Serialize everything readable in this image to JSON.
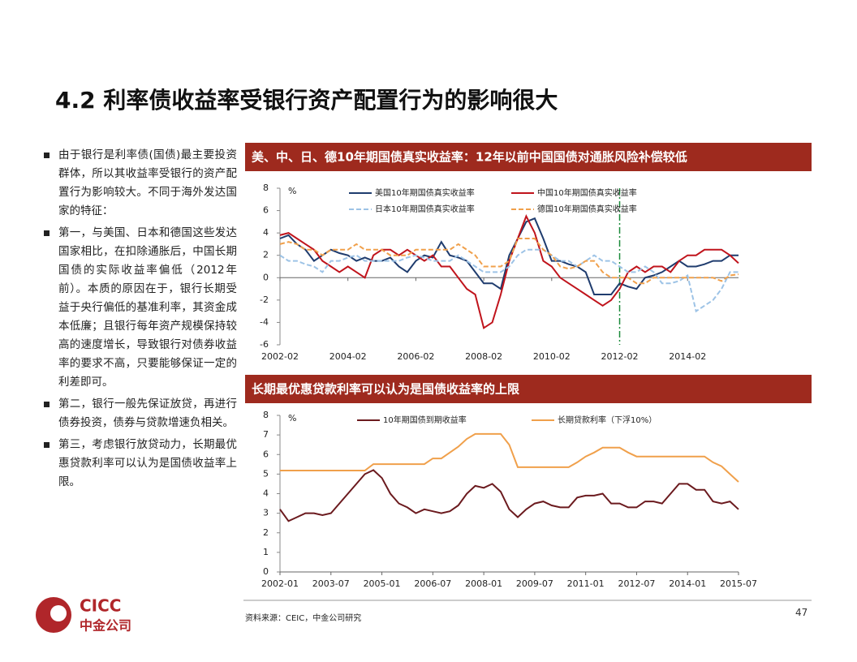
{
  "header": {
    "title": "4.2 利率债收益率受银行资产配置行为的影响很大"
  },
  "bullets": [
    "由于银行是利率债(国债)最主要投资群体，所以其收益率受银行的资产配置行为影响较大。不同于海外发达国家的特征：",
    "第一，与美国、日本和德国这些发达国家相比，在扣除通胀后，中国长期国债的实际收益率偏低（2012年前）。本质的原因在于，银行长期受益于央行偏低的基准利率，其资金成本低廉；且银行每年资产规模保持较高的速度增长，导致银行对债券收益率的要求不高，只要能够保证一定的利差即可。",
    "第二，银行一般先保证放贷，再进行债券投资，债券与贷款增速负相关。",
    "第三，考虑银行放贷动力，长期最优惠贷款利率可以认为是国债收益率上限。"
  ],
  "chart_data": [
    {
      "type": "line",
      "title": "美、中、日、德10年期国债真实收益率：12年以前中国国债对通胀风险补偿较低",
      "y_unit": "%",
      "categories": [
        "2002-02",
        null,
        null,
        null,
        null,
        null,
        null,
        null,
        "2004-02",
        null,
        null,
        null,
        null,
        null,
        null,
        null,
        "2006-02",
        null,
        null,
        null,
        null,
        null,
        null,
        null,
        "2008-02",
        null,
        null,
        null,
        null,
        null,
        null,
        null,
        "2010-02",
        null,
        null,
        null,
        null,
        null,
        null,
        null,
        "2012-02",
        null,
        null,
        null,
        null,
        null,
        null,
        null,
        "2014-02",
        null,
        null,
        null,
        null,
        null,
        null
      ],
      "ylim": [
        -6,
        8
      ],
      "yticks": [
        -6,
        -4,
        -2,
        0,
        2,
        4,
        6,
        8
      ],
      "reference_line": {
        "category_index": 40,
        "color": "#1a8a3a"
      },
      "series": [
        {
          "name": "美国10年期国债真实收益率",
          "color": "#1f3c6e",
          "style": "solid",
          "values": [
            3.5,
            3.8,
            3.0,
            2.5,
            1.5,
            2.0,
            2.5,
            2.2,
            2.0,
            1.5,
            1.8,
            1.5,
            1.5,
            1.8,
            1.0,
            0.5,
            1.5,
            2.0,
            1.8,
            3.2,
            2.0,
            1.8,
            1.5,
            0.5,
            -0.5,
            -0.5,
            -1.0,
            2.0,
            3.5,
            5.0,
            5.3,
            3.5,
            1.5,
            1.5,
            1.2,
            1.0,
            0.5,
            -1.5,
            -1.5,
            -1.5,
            -0.5,
            -0.8,
            -1.0,
            0,
            0.2,
            0.5,
            1.0,
            1.5,
            1.0,
            1.0,
            1.2,
            1.5,
            1.5,
            2.0,
            2.0
          ]
        },
        {
          "name": "中国10年期国债真实收益率",
          "color": "#c0141c",
          "style": "solid",
          "values": [
            3.8,
            4.0,
            3.5,
            3.0,
            2.5,
            1.5,
            1.0,
            0.5,
            1.0,
            0.5,
            0.0,
            2.0,
            2.5,
            2.5,
            2.0,
            2.5,
            2.0,
            1.5,
            2.0,
            1.0,
            1.0,
            0,
            -1.0,
            -1.5,
            -4.5,
            -4.0,
            -1.5,
            1.5,
            3.5,
            5.5,
            4.0,
            1.5,
            1.0,
            0,
            -0.5,
            -1.0,
            -1.5,
            -2.0,
            -2.5,
            -2.0,
            -1.0,
            0.5,
            1.0,
            0.5,
            1.0,
            1.0,
            0.5,
            1.5,
            2.0,
            2.0,
            2.5,
            2.5,
            2.5,
            2.0,
            1.3
          ]
        },
        {
          "name": "日本10年期国债真实收益率",
          "color": "#9dc3e6",
          "style": "dashed",
          "values": [
            2.0,
            1.5,
            1.5,
            1.2,
            1.0,
            0.5,
            1.5,
            1.5,
            1.8,
            2.0,
            1.5,
            1.5,
            1.5,
            1.5,
            1.5,
            1.8,
            2.0,
            1.8,
            1.5,
            1.5,
            1.5,
            2.0,
            1.5,
            1.0,
            0.5,
            0.5,
            0.5,
            1.0,
            2.0,
            2.5,
            2.5,
            2.5,
            2.0,
            1.5,
            1.5,
            1.0,
            1.5,
            2.0,
            1.5,
            1.5,
            1.0,
            0.5,
            0.5,
            1.0,
            0.5,
            -0.5,
            -0.5,
            -0.3,
            0.2,
            -3.0,
            -2.5,
            -2.0,
            -1.0,
            0.5,
            0.5
          ]
        },
        {
          "name": "德国10年期国债真实收益率",
          "color": "#f0a04b",
          "style": "dashed",
          "values": [
            3.0,
            3.2,
            3.0,
            2.5,
            2.5,
            2.0,
            2.5,
            2.5,
            2.5,
            3.0,
            2.5,
            2.5,
            2.5,
            2.0,
            2.0,
            2.0,
            2.5,
            2.5,
            2.5,
            2.5,
            2.5,
            3.0,
            2.5,
            2.0,
            1.0,
            1.0,
            1.0,
            1.5,
            3.5,
            3.5,
            3.5,
            2.5,
            2.0,
            1.0,
            0.8,
            1.0,
            1.5,
            1.5,
            0.5,
            0,
            0,
            0,
            -0.5,
            -0.5,
            0,
            0,
            0,
            0,
            0,
            0,
            0,
            0,
            -0.3,
            0.2,
            0.3
          ]
        }
      ]
    },
    {
      "type": "line",
      "title": "长期最优惠贷款利率可以认为是国债收益率的上限",
      "y_unit": "%",
      "categories": [
        "2002-01",
        null,
        null,
        null,
        null,
        null,
        "2003-07",
        null,
        null,
        null,
        null,
        null,
        "2005-01",
        null,
        null,
        null,
        null,
        null,
        "2006-07",
        null,
        null,
        null,
        null,
        null,
        "2008-01",
        null,
        null,
        null,
        null,
        null,
        "2009-07",
        null,
        null,
        null,
        null,
        null,
        "2011-01",
        null,
        null,
        null,
        null,
        null,
        "2012-07",
        null,
        null,
        null,
        null,
        null,
        "2014-01",
        null,
        null,
        null,
        null,
        null,
        "2015-07"
      ],
      "ylim": [
        0,
        8
      ],
      "yticks": [
        0,
        1,
        2,
        3,
        4,
        5,
        6,
        7,
        8
      ],
      "series": [
        {
          "name": "10年期国债到期收益率",
          "color": "#6b1a1e",
          "style": "solid",
          "values": [
            3.2,
            2.6,
            2.8,
            3.0,
            3.0,
            2.9,
            3.0,
            3.5,
            4.0,
            4.5,
            5.0,
            5.2,
            4.8,
            4.0,
            3.5,
            3.3,
            3.0,
            3.2,
            3.1,
            3.0,
            3.1,
            3.4,
            4.0,
            4.4,
            4.3,
            4.5,
            4.1,
            3.2,
            2.8,
            3.2,
            3.5,
            3.6,
            3.4,
            3.3,
            3.3,
            3.8,
            3.9,
            3.9,
            4.0,
            3.5,
            3.5,
            3.3,
            3.3,
            3.6,
            3.6,
            3.5,
            4.0,
            4.5,
            4.5,
            4.2,
            4.2,
            3.6,
            3.5,
            3.6,
            3.2
          ]
        },
        {
          "name": "长期贷款利率（下浮10%）",
          "color": "#f0a04b",
          "style": "solid",
          "values": [
            5.18,
            5.18,
            5.18,
            5.18,
            5.18,
            5.18,
            5.18,
            5.18,
            5.18,
            5.18,
            5.18,
            5.51,
            5.51,
            5.51,
            5.51,
            5.51,
            5.51,
            5.51,
            5.8,
            5.8,
            6.1,
            6.4,
            6.8,
            7.05,
            7.05,
            7.05,
            7.05,
            6.5,
            5.35,
            5.35,
            5.35,
            5.35,
            5.35,
            5.35,
            5.35,
            5.6,
            5.9,
            6.1,
            6.35,
            6.35,
            6.35,
            6.1,
            5.9,
            5.9,
            5.9,
            5.9,
            5.9,
            5.9,
            5.9,
            5.9,
            5.9,
            5.6,
            5.4,
            5.0,
            4.6
          ]
        }
      ]
    }
  ],
  "source": "资料来源：CEIC，中金公司研究",
  "page_number": "47",
  "logo": {
    "en": "CICC",
    "cn": "中金公司"
  }
}
